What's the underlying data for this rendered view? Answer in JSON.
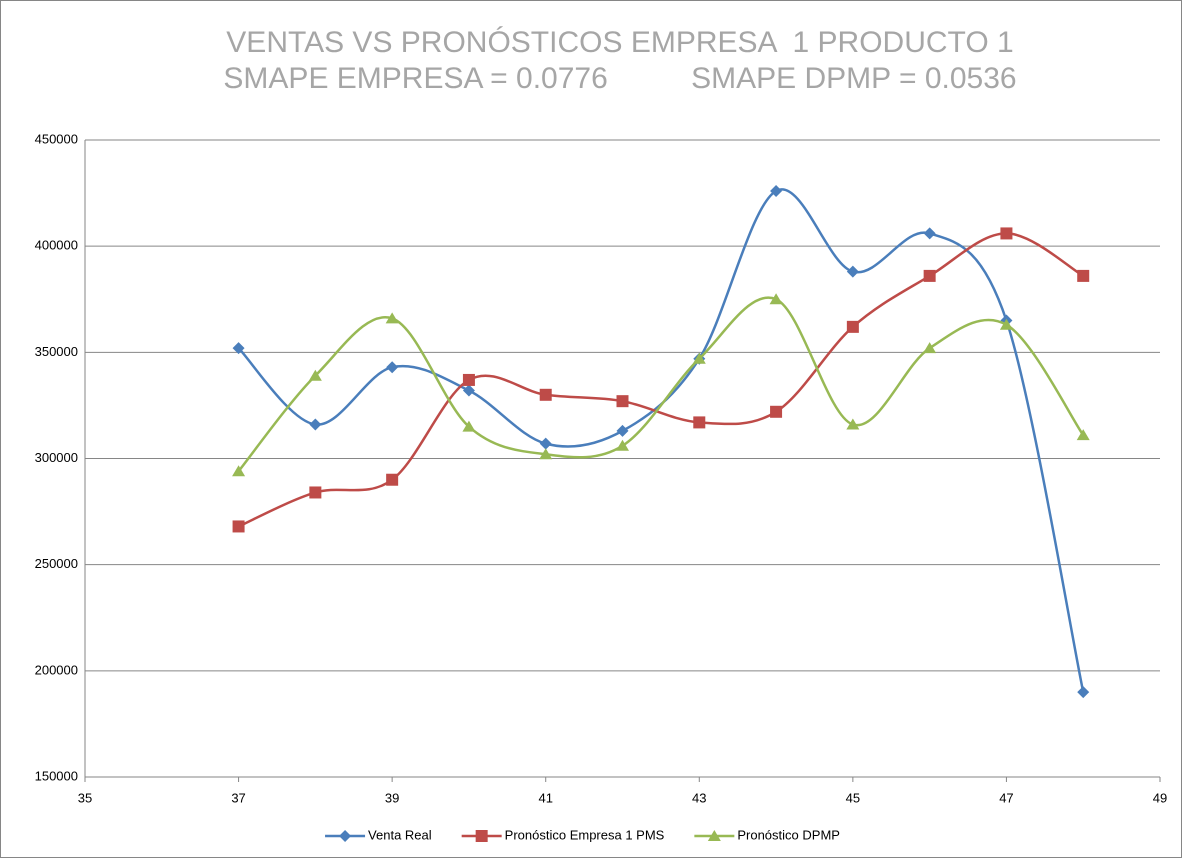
{
  "chart_data": {
    "type": "line",
    "title": "VENTAS VS PRONÓSTICOS EMPRESA  1 PRODUCTO 1",
    "subtitle": "SMAPE EMPRESA = 0.0776          SMAPE DPMP = 0.0536",
    "x": [
      37,
      38,
      39,
      40,
      41,
      42,
      43,
      44,
      45,
      46,
      47,
      48
    ],
    "series": [
      {
        "name": "Venta Real",
        "color": "#4a7ebb",
        "marker": "diamond",
        "values": [
          352000,
          316000,
          343000,
          332000,
          307000,
          313000,
          347000,
          426000,
          388000,
          406000,
          365000,
          190000
        ]
      },
      {
        "name": "Pronóstico Empresa 1 PMS",
        "color": "#be4b48",
        "marker": "square",
        "values": [
          268000,
          284000,
          290000,
          337000,
          330000,
          327000,
          317000,
          322000,
          362000,
          386000,
          406000,
          386000
        ]
      },
      {
        "name": "Pronóstico DPMP",
        "color": "#98b954",
        "marker": "triangle",
        "values": [
          294000,
          339000,
          366000,
          315000,
          302000,
          306000,
          347000,
          375000,
          316000,
          352000,
          363000,
          311000
        ]
      }
    ],
    "xlim": [
      35,
      49
    ],
    "xticks": [
      35,
      37,
      39,
      41,
      43,
      45,
      47,
      49
    ],
    "ylim": [
      150000,
      450000
    ],
    "yticks": [
      150000,
      200000,
      250000,
      300000,
      350000,
      400000,
      450000
    ],
    "grid": true,
    "smooth": true,
    "legend": "bottom"
  }
}
